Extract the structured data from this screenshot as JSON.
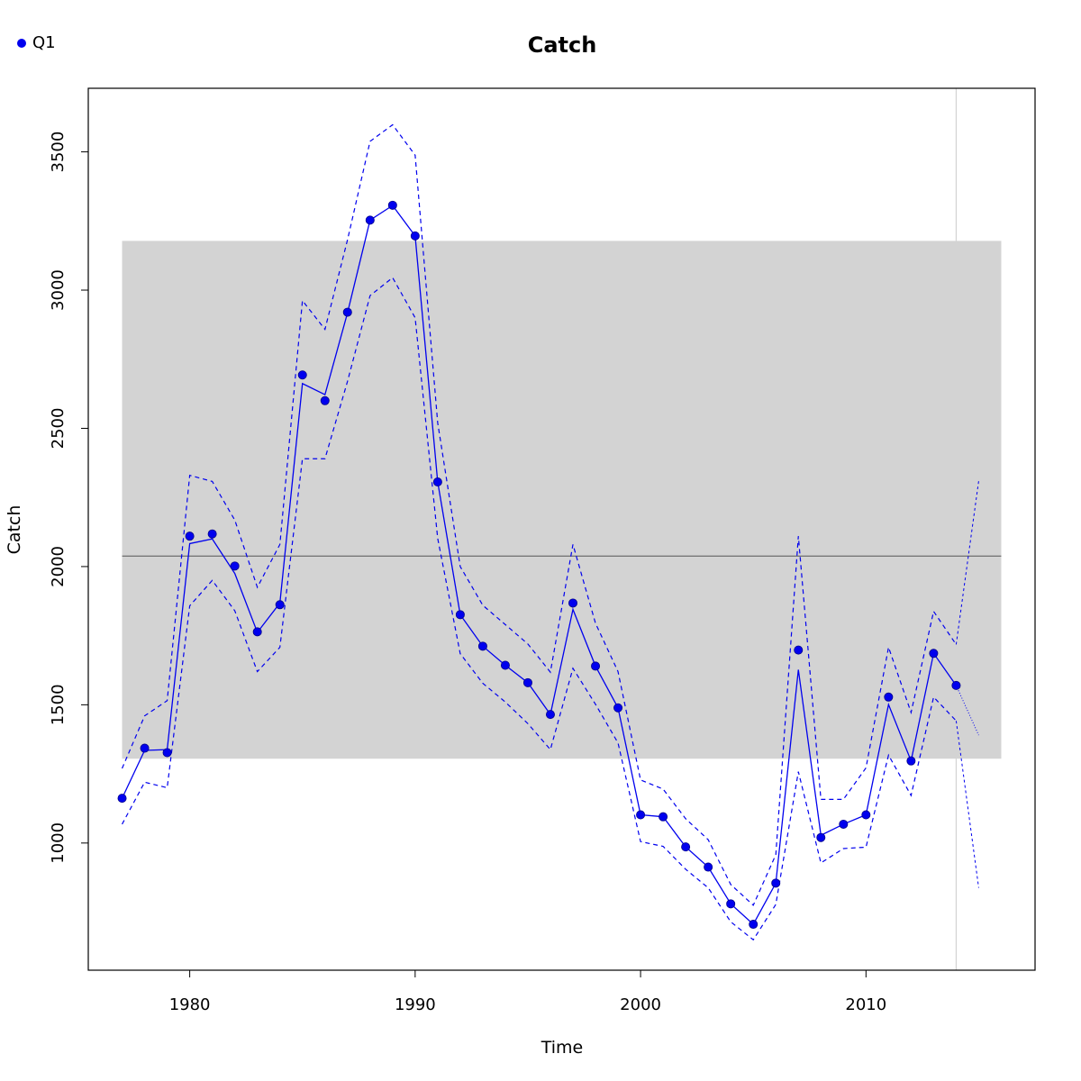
{
  "chart_data": {
    "type": "line",
    "title": "Catch",
    "xlabel": "Time",
    "ylabel": "Catch",
    "xlim": [
      1975.5,
      2017.5
    ],
    "ylim": [
      540,
      3730
    ],
    "x_ticks": [
      1980,
      1990,
      2000,
      2010
    ],
    "y_ticks": [
      1000,
      1500,
      2000,
      2500,
      3000,
      3500
    ],
    "legend": {
      "position": "top-left",
      "label": "Q1"
    },
    "reference_band": {
      "x": [
        1977,
        2016
      ],
      "y": [
        1305,
        3178
      ],
      "color": "#d3d3d3"
    },
    "reference_line": {
      "x": [
        1977,
        2016
      ],
      "y": 2038,
      "color": "#555555"
    },
    "vertical_line": {
      "x": 2014,
      "color": "#d3d3d3"
    },
    "colors": {
      "series": "#0000ee",
      "point": "#0000ee"
    },
    "x": [
      1977,
      1978,
      1979,
      1980,
      1981,
      1982,
      1983,
      1984,
      1985,
      1986,
      1987,
      1988,
      1989,
      1990,
      1991,
      1992,
      1993,
      1994,
      1995,
      1996,
      1997,
      1998,
      1999,
      2000,
      2001,
      2002,
      2003,
      2004,
      2005,
      2006,
      2007,
      2008,
      2009,
      2010,
      2011,
      2012,
      2013,
      2014
    ],
    "series": [
      {
        "name": "Q1",
        "observed": [
          1162,
          1343,
          1327,
          2110,
          2118,
          2002,
          1764,
          1862,
          2693,
          2600,
          2920,
          3253,
          3307,
          3196,
          2306,
          1826,
          1712,
          1643,
          1580,
          1465,
          1868,
          1640,
          1489,
          1102,
          1095,
          986,
          913,
          780,
          706,
          855,
          1698,
          1020,
          1068,
          1102,
          1528,
          1297,
          1686,
          1570
        ],
        "fitted": [
          1162,
          1335,
          1338,
          2083,
          2100,
          1975,
          1762,
          1868,
          2662,
          2622,
          2918,
          3253,
          3306,
          3196,
          2306,
          1826,
          1712,
          1643,
          1580,
          1465,
          1845,
          1640,
          1489,
          1102,
          1095,
          986,
          913,
          780,
          706,
          855,
          1627,
          1028,
          1068,
          1102,
          1501,
          1297,
          1686,
          1570
        ],
        "upper": [
          1270,
          1460,
          1515,
          2330,
          2308,
          2168,
          1925,
          2080,
          2962,
          2858,
          3182,
          3538,
          3598,
          3488,
          2520,
          2000,
          1860,
          1790,
          1720,
          1618,
          2080,
          1795,
          1620,
          1228,
          1195,
          1088,
          1012,
          850,
          775,
          958,
          2110,
          1158,
          1158,
          1272,
          1708,
          1472,
          1838,
          1718
        ],
        "lower": [
          1068,
          1220,
          1200,
          1858,
          1950,
          1840,
          1620,
          1708,
          2390,
          2390,
          2670,
          2980,
          3045,
          2900,
          2102,
          1685,
          1578,
          1510,
          1432,
          1338,
          1632,
          1502,
          1362,
          1005,
          988,
          905,
          838,
          715,
          650,
          778,
          1258,
          928,
          980,
          985,
          1318,
          1172,
          1528,
          1442
        ]
      }
    ],
    "projection": {
      "x": [
        2014,
        2015
      ],
      "fitted": [
        1570,
        1390
      ],
      "upper": [
        1718,
        2310
      ],
      "lower": [
        1442,
        838
      ]
    }
  }
}
